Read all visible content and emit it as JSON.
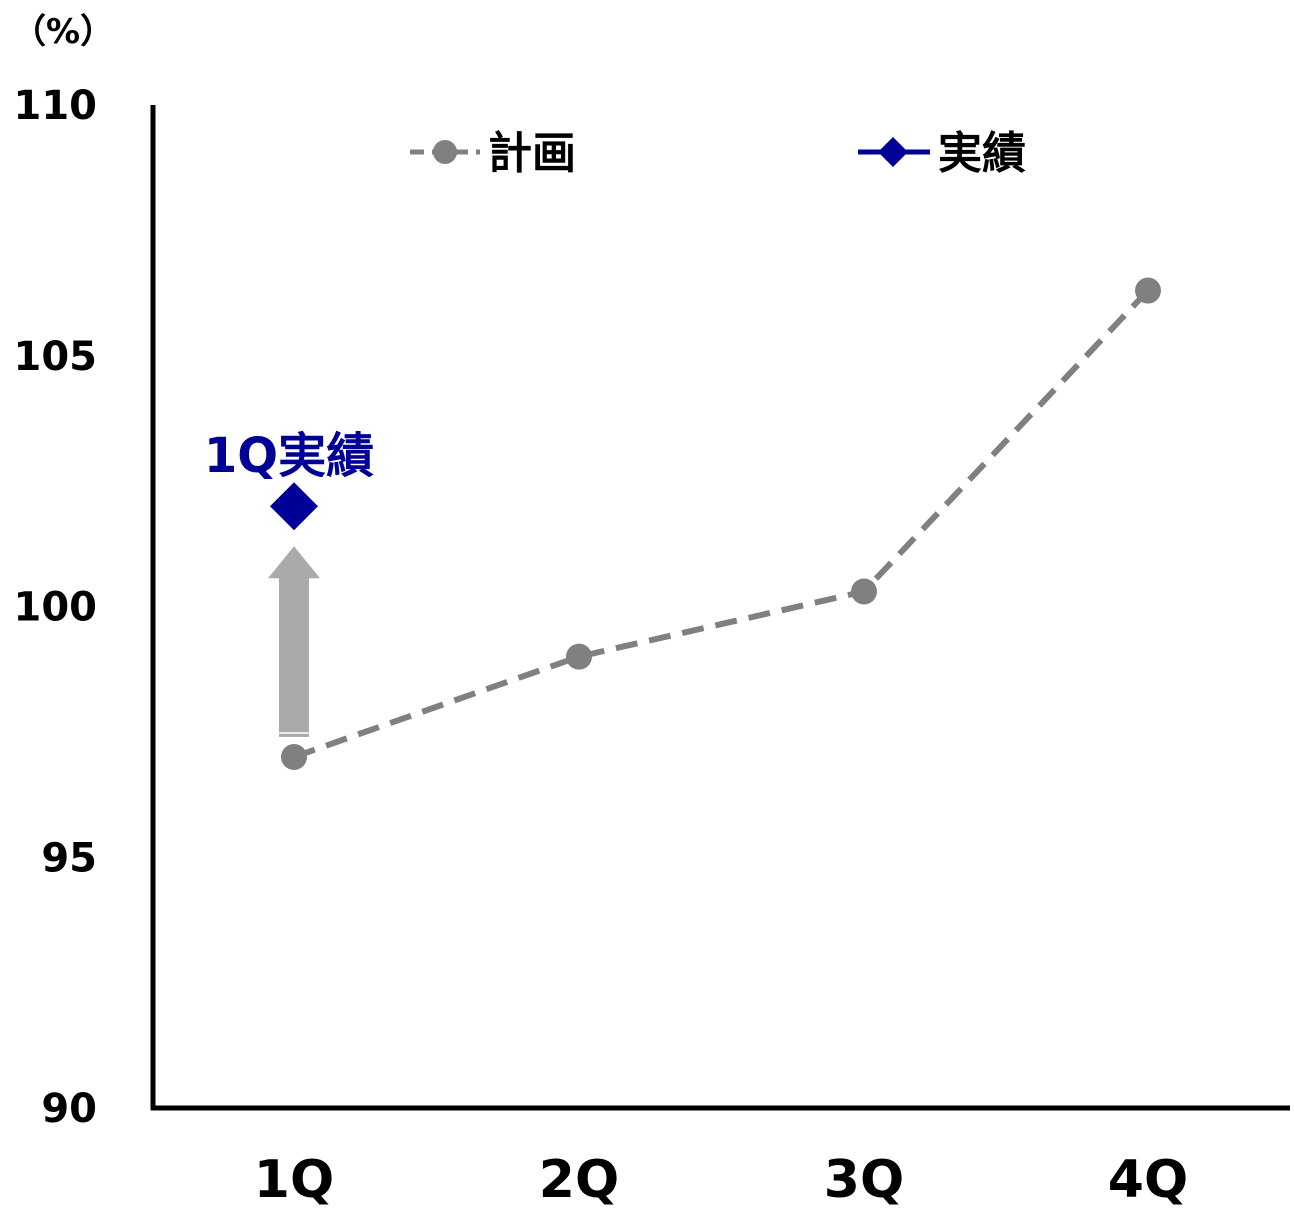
{
  "chart_data": {
    "type": "line",
    "unit_label": "（%）",
    "categories": [
      "1Q",
      "2Q",
      "3Q",
      "4Q"
    ],
    "ylim": [
      90,
      110
    ],
    "y_ticks": [
      "90",
      "95",
      "100",
      "105",
      "110"
    ],
    "grid": false,
    "legend_position": "top",
    "series": [
      {
        "name": "計画",
        "style": "dashed",
        "marker": "circle",
        "color": "#808080",
        "values": [
          97.0,
          99.0,
          100.3,
          106.3
        ]
      },
      {
        "name": "実績",
        "style": "solid",
        "marker": "diamond",
        "color": "#000096",
        "values": [
          102.0,
          null,
          null,
          null
        ]
      }
    ],
    "annotations": [
      {
        "text": "1Q実績",
        "category": "1Q",
        "value": 102.0,
        "color": "#000096"
      },
      {
        "type": "arrow",
        "category": "1Q",
        "from_value": 97.0,
        "to_value": 102.0,
        "color": "#aaaaaa"
      }
    ]
  }
}
